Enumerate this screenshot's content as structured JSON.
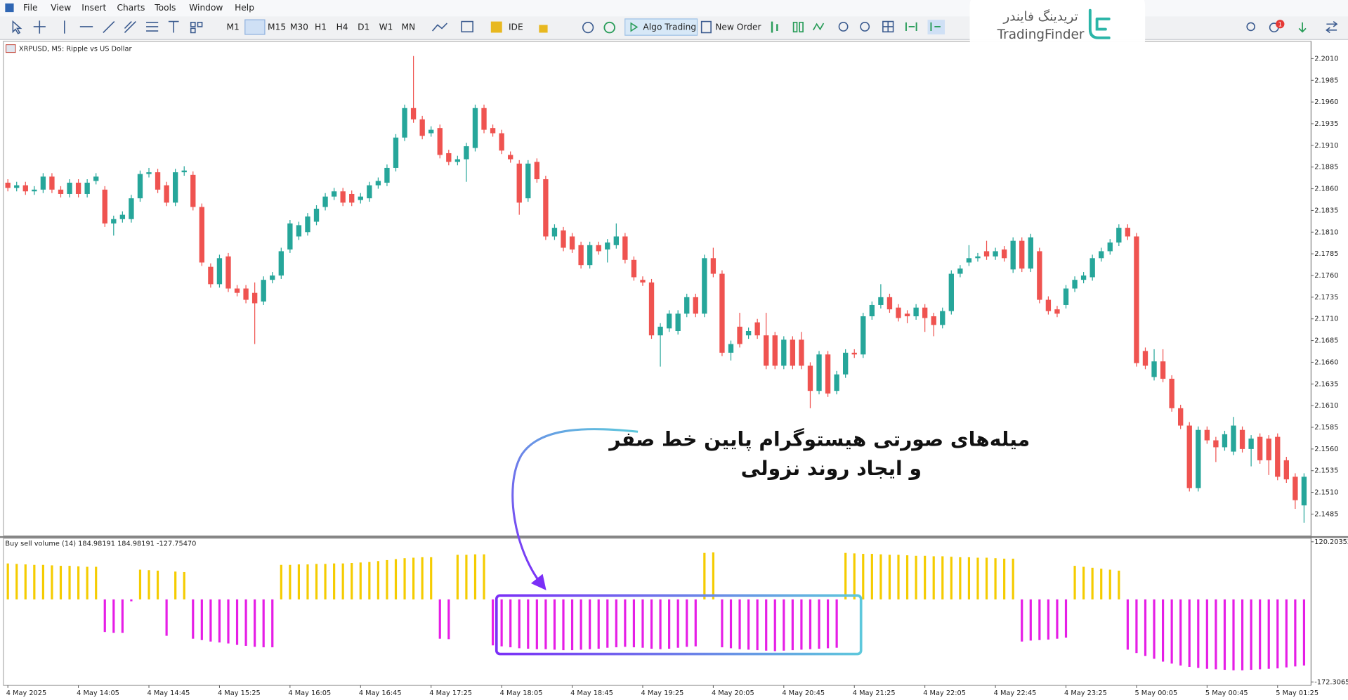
{
  "ui": {
    "menu": [
      "File",
      "View",
      "Insert",
      "Charts",
      "Tools",
      "Window",
      "Help"
    ],
    "timeframes": [
      "M1",
      "M5",
      "M15",
      "M30",
      "H1",
      "H4",
      "D1",
      "W1",
      "MN"
    ],
    "ide": "IDE",
    "algo_trading": "Algo Trading",
    "new_order": "New Order",
    "badge": "1",
    "watermark": {
      "fa": "تریدینگ فایندر",
      "en": "TradingFinder"
    },
    "annotation": [
      "میله‌های صورتی هیستوگرام پایین خط صفر",
      "و ایجاد روند نزولی"
    ]
  },
  "chart_data": [
    {
      "type": "candlestick",
      "title": "XRPUSD, M5:  Ripple vs US Dollar",
      "categories": [
        "4 May 2025",
        null,
        null,
        null,
        null,
        null,
        null,
        null,
        "4 May 14:05",
        null,
        null,
        null,
        null,
        null,
        null,
        null,
        "4 May 14:45",
        null,
        null,
        null,
        null,
        null,
        null,
        null,
        "4 May 15:25",
        null,
        null,
        null,
        null,
        null,
        null,
        null,
        "4 May 16:05",
        null,
        null,
        null,
        null,
        null,
        null,
        null,
        "4 May 16:45",
        null,
        null,
        null,
        null,
        null,
        null,
        null,
        "4 May 17:25",
        null,
        null,
        null,
        null,
        null,
        null,
        null,
        "4 May 18:05",
        null,
        null,
        null,
        null,
        null,
        null,
        null,
        "4 May 18:45",
        null,
        null,
        null,
        null,
        null,
        null,
        null,
        "4 May 19:25",
        null,
        null,
        null,
        null,
        null,
        null,
        null,
        "4 May 20:05",
        null,
        null,
        null,
        null,
        null,
        null,
        null,
        "4 May 20:45",
        null,
        null,
        null,
        null,
        null,
        null,
        null,
        "4 May 21:25",
        null,
        null,
        null,
        null,
        null,
        null,
        null,
        "4 May 22:05",
        null,
        null,
        null,
        null,
        null,
        null,
        null,
        "4 May 22:45",
        null,
        null,
        null,
        null,
        null,
        null,
        null,
        "4 May 23:25",
        null,
        null,
        null,
        null,
        null,
        null,
        null,
        "5 May 00:05",
        null,
        null,
        null,
        null,
        null,
        null,
        null,
        "5 May 00:45",
        null,
        null,
        null,
        null,
        null,
        null,
        null,
        "5 May 01:25",
        null,
        null,
        null
      ],
      "ohlc": [
        [
          2.1867,
          2.1871,
          2.1857,
          2.1861
        ],
        [
          2.1861,
          2.1868,
          2.1857,
          2.1864
        ],
        [
          2.1864,
          2.1868,
          2.1853,
          2.1857
        ],
        [
          2.1857,
          2.1863,
          2.1853,
          2.1859
        ],
        [
          2.1859,
          2.1878,
          2.1855,
          2.1874
        ],
        [
          2.1874,
          2.1878,
          2.1855,
          2.1859
        ],
        [
          2.1859,
          2.1863,
          2.185,
          2.1854
        ],
        [
          2.1854,
          2.1871,
          2.185,
          2.1867
        ],
        [
          2.1867,
          2.1871,
          2.185,
          2.1854
        ],
        [
          2.1854,
          2.1871,
          2.185,
          2.1867
        ],
        [
          2.1869,
          2.1878,
          2.1865,
          2.1874
        ],
        [
          2.1859,
          2.1863,
          2.1816,
          2.182
        ],
        [
          2.182,
          2.1829,
          2.1806,
          2.1825
        ],
        [
          2.1825,
          2.1834,
          2.1821,
          2.183
        ],
        [
          2.1825,
          2.1853,
          2.1821,
          2.1849
        ],
        [
          2.1849,
          2.1881,
          2.1845,
          2.1877
        ],
        [
          2.1877,
          2.1884,
          2.1873,
          2.1879
        ],
        [
          2.1879,
          2.1883,
          2.1855,
          2.1859
        ],
        [
          2.1864,
          2.1868,
          2.184,
          2.1844
        ],
        [
          2.1844,
          2.1883,
          2.184,
          2.1879
        ],
        [
          2.1879,
          2.1886,
          2.1875,
          2.1881
        ],
        [
          2.1876,
          2.188,
          2.1835,
          2.1839
        ],
        [
          2.1839,
          2.1843,
          2.1771,
          2.1775
        ],
        [
          2.177,
          2.1774,
          2.1746,
          2.175
        ],
        [
          2.175,
          2.1784,
          2.1746,
          2.178
        ],
        [
          2.1782,
          2.1786,
          2.1741,
          2.1745
        ],
        [
          2.1745,
          2.1749,
          2.1736,
          2.174
        ],
        [
          2.1745,
          2.1749,
          2.1728,
          2.1732
        ],
        [
          2.174,
          2.1752,
          2.1681,
          2.1728
        ],
        [
          2.173,
          2.1759,
          2.1726,
          2.1755
        ],
        [
          2.1755,
          2.1764,
          2.1751,
          2.176
        ],
        [
          2.176,
          2.1792,
          2.1756,
          2.1788
        ],
        [
          2.179,
          2.1824,
          2.1786,
          2.182
        ],
        [
          2.1805,
          2.1822,
          2.1801,
          2.1818
        ],
        [
          2.181,
          2.1832,
          2.1806,
          2.1828
        ],
        [
          2.1822,
          2.1841,
          2.1818,
          2.1837
        ],
        [
          2.1839,
          2.1855,
          2.1835,
          2.1851
        ],
        [
          2.1851,
          2.1861,
          2.1847,
          2.1857
        ],
        [
          2.1857,
          2.1861,
          2.184,
          2.1844
        ],
        [
          2.1854,
          2.1858,
          2.184,
          2.1844
        ],
        [
          2.1847,
          2.1855,
          2.1843,
          2.1851
        ],
        [
          2.1849,
          2.1868,
          2.1845,
          2.1864
        ],
        [
          2.1864,
          2.1873,
          2.186,
          2.1869
        ],
        [
          2.1867,
          2.1888,
          2.1863,
          2.1884
        ],
        [
          2.1884,
          2.1923,
          2.188,
          2.1919
        ],
        [
          2.1919,
          2.1957,
          2.1915,
          2.1953
        ],
        [
          2.1953,
          2.2013,
          2.1936,
          2.194
        ],
        [
          2.194,
          2.1944,
          2.1917,
          2.1921
        ],
        [
          2.1924,
          2.1932,
          2.192,
          2.1928
        ],
        [
          2.193,
          2.1934,
          2.1895,
          2.1899
        ],
        [
          2.1901,
          2.1905,
          2.1887,
          2.1891
        ],
        [
          2.1891,
          2.1898,
          2.1887,
          2.1894
        ],
        [
          2.1894,
          2.1913,
          2.1868,
          2.1909
        ],
        [
          2.1907,
          2.1957,
          2.1903,
          2.1953
        ],
        [
          2.1953,
          2.1957,
          2.1924,
          2.1928
        ],
        [
          2.193,
          2.1934,
          2.192,
          2.1924
        ],
        [
          2.1924,
          2.1928,
          2.19,
          2.1904
        ],
        [
          2.1899,
          2.1903,
          2.189,
          2.1894
        ],
        [
          2.1889,
          2.1893,
          2.183,
          2.1844
        ],
        [
          2.1849,
          2.1893,
          2.1845,
          2.1889
        ],
        [
          2.1891,
          2.1895,
          2.1867,
          2.1871
        ],
        [
          2.1871,
          2.1875,
          2.1801,
          2.1805
        ],
        [
          2.1805,
          2.1819,
          2.1801,
          2.1815
        ],
        [
          2.1812,
          2.1816,
          2.1788,
          2.1792
        ],
        [
          2.1805,
          2.1809,
          2.1786,
          2.179
        ],
        [
          2.1795,
          2.1799,
          2.1768,
          2.1772
        ],
        [
          2.1772,
          2.1799,
          2.1768,
          2.1795
        ],
        [
          2.1795,
          2.1799,
          2.1784,
          2.1788
        ],
        [
          2.179,
          2.1802,
          2.1775,
          2.1798
        ],
        [
          2.1795,
          2.182,
          2.1791,
          2.1805
        ],
        [
          2.1805,
          2.1809,
          2.1774,
          2.1778
        ],
        [
          2.1778,
          2.1782,
          2.1754,
          2.1758
        ],
        [
          2.1755,
          2.1759,
          2.1748,
          2.1752
        ],
        [
          2.1752,
          2.1756,
          2.1687,
          2.1691
        ],
        [
          2.1691,
          2.1705,
          2.1655,
          2.1701
        ],
        [
          2.1699,
          2.172,
          2.1695,
          2.1716
        ],
        [
          2.1696,
          2.172,
          2.1692,
          2.1716
        ],
        [
          2.1716,
          2.1739,
          2.1712,
          2.1735
        ],
        [
          2.1735,
          2.1739,
          2.1712,
          2.1716
        ],
        [
          2.1716,
          2.1784,
          2.1712,
          2.178
        ],
        [
          2.178,
          2.1792,
          2.1758,
          2.1762
        ],
        [
          2.1762,
          2.1766,
          2.1667,
          2.1671
        ],
        [
          2.1671,
          2.1685,
          2.1662,
          2.1681
        ],
        [
          2.1701,
          2.1717,
          2.1677,
          2.1681
        ],
        [
          2.1691,
          2.17,
          2.1687,
          2.1696
        ],
        [
          2.1706,
          2.171,
          2.1687,
          2.1691
        ],
        [
          2.1691,
          2.1717,
          2.1652,
          2.1656
        ],
        [
          2.1691,
          2.1695,
          2.1652,
          2.1656
        ],
        [
          2.1656,
          2.169,
          2.1652,
          2.1686
        ],
        [
          2.1686,
          2.169,
          2.1652,
          2.1656
        ],
        [
          2.1686,
          2.1695,
          2.1652,
          2.1656
        ],
        [
          2.1656,
          2.166,
          2.1607,
          2.1627
        ],
        [
          2.1627,
          2.1673,
          2.1623,
          2.1669
        ],
        [
          2.1669,
          2.1673,
          2.162,
          2.1624
        ],
        [
          2.1627,
          2.165,
          2.1623,
          2.1646
        ],
        [
          2.1646,
          2.1675,
          2.1642,
          2.1671
        ],
        [
          2.1671,
          2.1675,
          2.1665,
          2.1669
        ],
        [
          2.1669,
          2.1717,
          2.1665,
          2.1713
        ],
        [
          2.1713,
          2.173,
          2.1709,
          2.1726
        ],
        [
          2.1726,
          2.175,
          2.1722,
          2.1735
        ],
        [
          2.1735,
          2.1739,
          2.1717,
          2.1721
        ],
        [
          2.1723,
          2.1727,
          2.1707,
          2.1711
        ],
        [
          2.1716,
          2.172,
          2.1705,
          2.1713
        ],
        [
          2.1713,
          2.1727,
          2.1709,
          2.1723
        ],
        [
          2.1723,
          2.1727,
          2.1695,
          2.1711
        ],
        [
          2.1713,
          2.1717,
          2.169,
          2.1703
        ],
        [
          2.1703,
          2.1723,
          2.1699,
          2.1719
        ],
        [
          2.1719,
          2.1766,
          2.1715,
          2.1762
        ],
        [
          2.1762,
          2.1772,
          2.1758,
          2.1768
        ],
        [
          2.1775,
          2.1795,
          2.1771,
          2.178
        ],
        [
          2.178,
          2.1786,
          2.1776,
          2.1782
        ],
        [
          2.1788,
          2.18,
          2.1778,
          2.1782
        ],
        [
          2.1782,
          2.1792,
          2.1778,
          2.1788
        ],
        [
          2.179,
          2.1794,
          2.1776,
          2.178
        ],
        [
          2.1767,
          2.1804,
          2.1763,
          2.18
        ],
        [
          2.18,
          2.1804,
          2.1764,
          2.1768
        ],
        [
          2.1768,
          2.1808,
          2.1764,
          2.1804
        ],
        [
          2.1788,
          2.1792,
          2.1728,
          2.1732
        ],
        [
          2.1732,
          2.1736,
          2.1715,
          2.1719
        ],
        [
          2.1721,
          2.1725,
          2.1712,
          2.1716
        ],
        [
          2.1726,
          2.1749,
          2.1722,
          2.1745
        ],
        [
          2.1745,
          2.1759,
          2.1741,
          2.1755
        ],
        [
          2.1755,
          2.1764,
          2.1751,
          2.176
        ],
        [
          2.1758,
          2.1784,
          2.1754,
          2.178
        ],
        [
          2.178,
          2.1792,
          2.1776,
          2.1788
        ],
        [
          2.1788,
          2.1802,
          2.1784,
          2.1798
        ],
        [
          2.1798,
          2.1819,
          2.1794,
          2.1815
        ],
        [
          2.1815,
          2.1819,
          2.1801,
          2.1805
        ],
        [
          2.1805,
          2.1809,
          2.1655,
          2.1659
        ],
        [
          2.1673,
          2.1677,
          2.1652,
          2.1656
        ],
        [
          2.1643,
          2.1675,
          2.1639,
          2.1661
        ],
        [
          2.1661,
          2.1675,
          2.1637,
          2.1641
        ],
        [
          2.1641,
          2.1645,
          2.1603,
          2.1607
        ],
        [
          2.1607,
          2.1611,
          2.1583,
          2.1587
        ],
        [
          2.1587,
          2.1591,
          2.1511,
          2.1515
        ],
        [
          2.1515,
          2.1586,
          2.1511,
          2.1582
        ],
        [
          2.1582,
          2.1586,
          2.1566,
          2.157
        ],
        [
          2.157,
          2.1574,
          2.1545,
          2.1562
        ],
        [
          2.1562,
          2.1581,
          2.1558,
          2.1577
        ],
        [
          2.1557,
          2.1597,
          2.1553,
          2.1587
        ],
        [
          2.1582,
          2.1586,
          2.1556,
          2.156
        ],
        [
          2.156,
          2.1576,
          2.154,
          2.1572
        ],
        [
          2.1574,
          2.1578,
          2.1543,
          2.1547
        ],
        [
          2.1572,
          2.1576,
          2.153,
          2.1547
        ],
        [
          2.1574,
          2.1578,
          2.1524,
          2.1528
        ],
        [
          2.1547,
          2.1551,
          2.1521,
          2.1525
        ],
        [
          2.1528,
          2.1532,
          2.1491,
          2.1501
        ],
        [
          2.1495,
          2.1532,
          2.1475,
          2.1528
        ]
      ],
      "up_color": "#26a69a",
      "down_color": "#ef5350",
      "ylim": [
        2.1461,
        2.203
      ],
      "yticks": [
        2.1485,
        {
          "value": 2.151,
          "label": "2.1510"
        },
        2.1535,
        {
          "value": 2.156,
          "label": "2.1560"
        },
        2.1585,
        {
          "value": 2.161,
          "label": "2.1610"
        },
        2.1635,
        {
          "value": 2.166,
          "label": "2.1660"
        },
        2.1685,
        {
          "value": 2.171,
          "label": "2.1710"
        },
        2.1735,
        {
          "value": 2.176,
          "label": "2.1760"
        },
        2.1785,
        {
          "value": 2.181,
          "label": "2.1810"
        },
        2.1835,
        {
          "value": 2.186,
          "label": "2.1860"
        },
        2.1885,
        {
          "value": 2.191,
          "label": "2.1910"
        },
        2.1935,
        {
          "value": 2.196,
          "label": "2.1960"
        },
        2.1985,
        {
          "value": 2.201,
          "label": "2.2010"
        }
      ]
    },
    {
      "type": "bar",
      "title": "Buy sell volume (14) 184.98191 184.98191 -127.75470",
      "values": [
        75,
        74,
        73,
        72,
        72,
        71,
        70,
        70,
        69,
        68,
        68,
        -68,
        -70,
        -70,
        -4,
        62,
        61,
        60,
        -76,
        58,
        57,
        -82,
        -85,
        -88,
        -90,
        -92,
        -95,
        -97,
        -99,
        -100,
        -100,
        72,
        72,
        73,
        73,
        74,
        74,
        75,
        75,
        76,
        77,
        78,
        80,
        82,
        84,
        86,
        87,
        88,
        88,
        -82,
        -83,
        93,
        93,
        94,
        94,
        -96,
        -98,
        -100,
        -102,
        -103,
        -104,
        -104,
        -105,
        -106,
        -106,
        -105,
        -104,
        -103,
        -101,
        -100,
        -99,
        -100,
        -101,
        -103,
        -104,
        -103,
        -101,
        -99,
        -98,
        97,
        98,
        -100,
        -102,
        -104,
        -105,
        -106,
        -107,
        -108,
        -107,
        -106,
        -105,
        -104,
        -103,
        -102,
        -101,
        97,
        96,
        95,
        95,
        94,
        93,
        93,
        92,
        91,
        91,
        90,
        90,
        89,
        88,
        88,
        87,
        87,
        86,
        85,
        85,
        -88,
        -86,
        -85,
        -84,
        -82,
        -80,
        70,
        68,
        66,
        64,
        62,
        60,
        -105,
        -112,
        -118,
        -124,
        -130,
        -134,
        -138,
        -141,
        -143,
        -145,
        -146,
        -147,
        -148,
        -148,
        -147,
        -146,
        -145,
        -144,
        -142,
        -140,
        -138
      ],
      "positive_color": "#f5cc00",
      "negative_color": "#e61ee6",
      "ylim": [
        -177.7,
        127.4
      ],
      "yticks": [
        120.20352,
        -172.3065
      ]
    }
  ]
}
